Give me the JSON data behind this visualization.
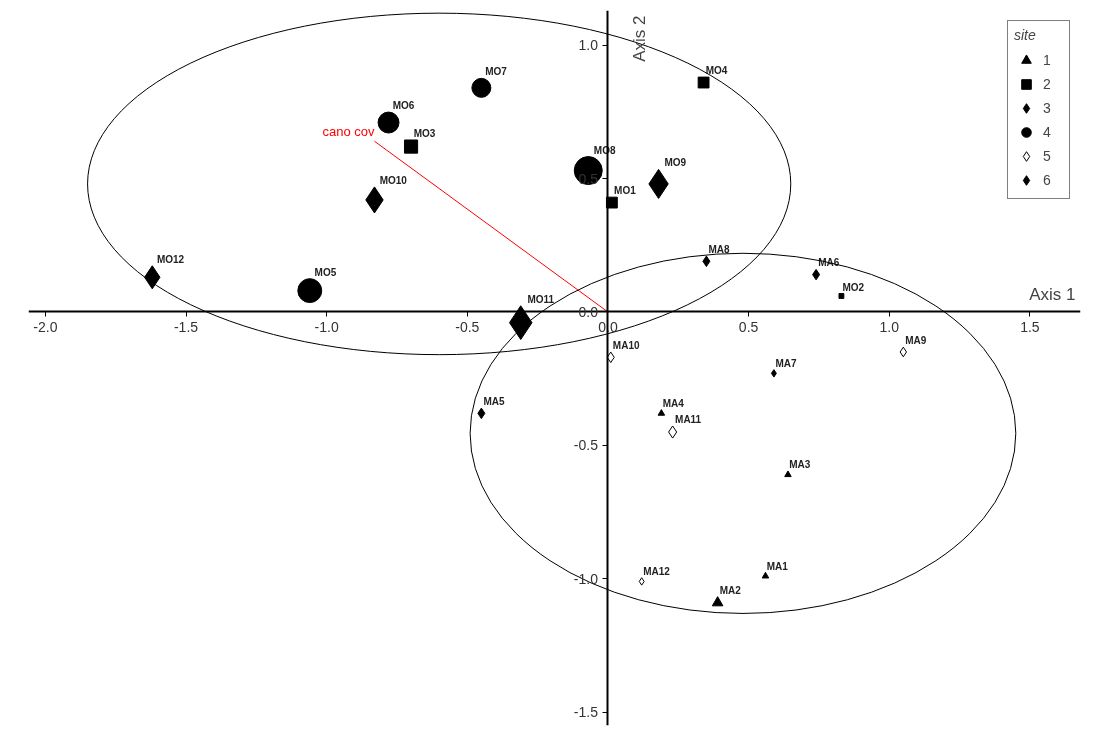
{
  "chart_data": {
    "type": "bubble",
    "xlabel": "Axis 1",
    "ylabel": "Axis 2",
    "legend_title": "site",
    "legend": "top right",
    "grid": false,
    "xlim": [
      -2.06,
      1.68
    ],
    "ylim": [
      -1.55,
      1.13
    ],
    "xticks": [
      {
        "value": -2,
        "label": "-2.0"
      },
      {
        "value": -1.5,
        "label": "-1.5"
      },
      {
        "value": -1,
        "label": "-1.0"
      },
      {
        "value": -0.5,
        "label": "-0.5"
      },
      {
        "value": 0,
        "label": "0.0"
      },
      {
        "value": 0.5,
        "label": "0.5"
      },
      {
        "value": 1,
        "label": "1.0"
      },
      {
        "value": 1.5,
        "label": "1.5"
      }
    ],
    "yticks": [
      {
        "value": -1.5,
        "label": "-1.5"
      },
      {
        "value": -1,
        "label": "-1.0"
      },
      {
        "value": -0.5,
        "label": "-0.5"
      },
      {
        "value": 0,
        "label": "0.0"
      },
      {
        "value": 0.5,
        "label": "0.5"
      },
      {
        "value": 1,
        "label": "1.0"
      }
    ],
    "series": [
      {
        "name": "1",
        "color": "#000000",
        "marker": "triangle",
        "x": [
          0.56,
          0.39,
          0.64,
          0.19
        ],
        "values": [
          -0.99,
          -1.09,
          -0.61,
          -0.38
        ],
        "sizes": [
          0.03,
          0.08,
          0.03,
          0.03
        ],
        "value_labels": [
          "MA1",
          "MA2",
          "MA3",
          "MA4"
        ]
      },
      {
        "name": "2",
        "color": "#000000",
        "marker": "square",
        "x": [
          0.014,
          0.83,
          -0.7,
          0.34
        ],
        "values": [
          0.41,
          0.06,
          0.62,
          0.86
        ],
        "sizes": [
          0.15,
          0.03,
          0.22,
          0.15
        ],
        "value_labels": [
          "MO1",
          "MO2",
          "MO3",
          "MO4"
        ]
      },
      {
        "name": "3",
        "color": "#000000",
        "marker": "diamond",
        "x": [
          0.18,
          -0.83,
          -0.31,
          -1.62
        ],
        "values": [
          0.48,
          0.42,
          -0.04,
          0.13
        ],
        "sizes": [
          0.46,
          0.37,
          0.62,
          0.29
        ],
        "value_labels": [
          "MO9",
          "MO10",
          "MO11",
          "MO12"
        ]
      },
      {
        "name": "4",
        "color": "#000000",
        "marker": "circle",
        "x": [
          -1.06,
          -0.78,
          -0.45,
          -0.07
        ],
        "values": [
          0.08,
          0.71,
          0.84,
          0.53
        ],
        "sizes": [
          0.73,
          0.56,
          0.46,
          1.0
        ],
        "value_labels": [
          "MO5",
          "MO6",
          "MO7",
          "MO8"
        ]
      },
      {
        "name": "5",
        "color": "#ffffff",
        "marker": "diamond",
        "x": [
          1.05,
          0.01,
          0.23,
          0.12
        ],
        "values": [
          -0.15,
          -0.17,
          -0.45,
          -1.01
        ],
        "sizes": [
          0.05,
          0.06,
          0.08,
          0.03
        ],
        "value_labels": [
          "MA9",
          "MA10",
          "MA11",
          "MA12"
        ]
      },
      {
        "name": "6",
        "color": "#000000",
        "marker": "diamond",
        "x": [
          -0.45,
          0.74,
          0.59,
          0.35
        ],
        "values": [
          -0.38,
          0.14,
          -0.23,
          0.19
        ],
        "sizes": [
          0.06,
          0.06,
          0.03,
          0.06
        ],
        "value_labels": [
          "MA5",
          "MA6",
          "MA7",
          "MA8"
        ]
      },
      {
        "name": "cano cov",
        "type": "line",
        "color": "#ff0000",
        "x": [
          0,
          -0.83
        ],
        "values": [
          0,
          0.64
        ]
      }
    ]
  }
}
